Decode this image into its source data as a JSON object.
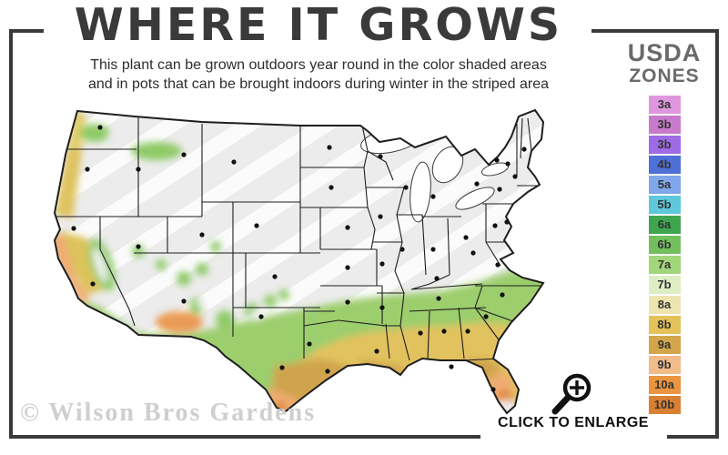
{
  "header": {
    "title": "WHERE IT GROWS",
    "subtitle_line1": "This plant can be grown outdoors year round in the color shaded areas",
    "subtitle_line2": "and in pots that can be brought indoors during winter in the striped area"
  },
  "legend": {
    "title_line1": "USDA",
    "title_line2": "ZONES",
    "zones": [
      {
        "label": "3a",
        "color": "#DE97DF"
      },
      {
        "label": "3b",
        "color": "#C87ACC"
      },
      {
        "label": "3b",
        "color": "#9E6AE5"
      },
      {
        "label": "4b",
        "color": "#4F70D7"
      },
      {
        "label": "5a",
        "color": "#7FA7EA"
      },
      {
        "label": "5b",
        "color": "#5FC8DB"
      },
      {
        "label": "6a",
        "color": "#3FA64F"
      },
      {
        "label": "6b",
        "color": "#73BF5E"
      },
      {
        "label": "7a",
        "color": "#A3D57B"
      },
      {
        "label": "7b",
        "color": "#DFEDC5"
      },
      {
        "label": "8a",
        "color": "#EDE4B0"
      },
      {
        "label": "8b",
        "color": "#E4C25A"
      },
      {
        "label": "9a",
        "color": "#D2A74C"
      },
      {
        "label": "9b",
        "color": "#F2BB8A"
      },
      {
        "label": "10a",
        "color": "#EA9440"
      },
      {
        "label": "10b",
        "color": "#D98033"
      }
    ]
  },
  "map": {
    "kind": "united-states-usda-zone-map",
    "striped_area_meaning": "striped area",
    "colors": {
      "striped_base": "#ECECEC",
      "stripe": "#FFFFFF",
      "green_band": "#9CCE6D",
      "gold_band": "#E2C25F",
      "dark_gold": "#CFA44E",
      "orange": "#F0AC72",
      "deep_orange": "#E08A3C",
      "state_line": "#1E1E1E"
    }
  },
  "footer": {
    "enlarge_label": "CLICK TO ENLARGE",
    "magnifier_icon": "magnifier-plus-icon",
    "watermark": "© Wilson Bros Gardens"
  },
  "frame_color": "#3A3A3A"
}
